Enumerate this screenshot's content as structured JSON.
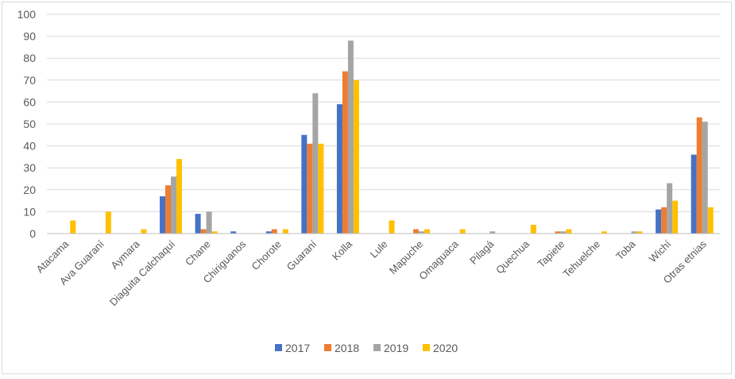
{
  "chart_data": {
    "type": "bar",
    "title": "",
    "xlabel": "",
    "ylabel": "",
    "ylim": [
      0,
      100
    ],
    "yticks": [
      0,
      10,
      20,
      30,
      40,
      50,
      60,
      70,
      80,
      90,
      100
    ],
    "grid": true,
    "legend_position": "bottom",
    "categories": [
      "Atacama",
      "Ava Guaraní",
      "Aymara",
      "Diaguita Calchaquí",
      "Chane",
      "Chiriguanos",
      "Chorote",
      "Guaraní",
      "Kolla",
      "Lule",
      "Mapuche",
      "Omaguaca",
      "Pilagá",
      "Quechua",
      "Tapiete",
      "Tehuelche",
      "Toba",
      "Wichí",
      "Otras etnias"
    ],
    "series": [
      {
        "name": "2017",
        "color": "#4472c4",
        "values": [
          0,
          0,
          0,
          17,
          9,
          1,
          1,
          45,
          59,
          0,
          0,
          0,
          0,
          0,
          0,
          0,
          0,
          11,
          36
        ]
      },
      {
        "name": "2018",
        "color": "#ed7d31",
        "values": [
          0,
          0,
          0,
          22,
          2,
          0,
          2,
          41,
          74,
          0,
          2,
          0,
          0,
          0,
          1,
          0,
          0,
          12,
          53
        ]
      },
      {
        "name": "2019",
        "color": "#a5a5a5",
        "values": [
          0,
          0,
          0,
          26,
          10,
          0,
          0,
          64,
          88,
          0,
          1,
          0,
          1,
          0,
          1,
          0,
          1,
          23,
          51
        ]
      },
      {
        "name": "2020",
        "color": "#ffc000",
        "values": [
          6,
          10,
          2,
          34,
          1,
          0,
          2,
          41,
          70,
          6,
          2,
          2,
          0,
          4,
          2,
          1,
          1,
          15,
          12
        ]
      }
    ]
  }
}
